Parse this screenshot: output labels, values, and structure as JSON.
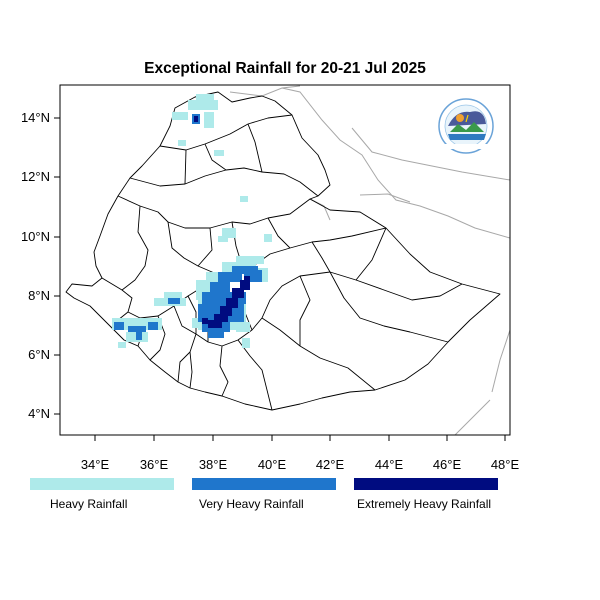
{
  "title": "Exceptional Rainfall for 20-21 Jul 2025",
  "axes": {
    "x_ticks": [
      "34°E",
      "36°E",
      "38°E",
      "40°E",
      "42°E",
      "44°E",
      "46°E",
      "48°E"
    ],
    "y_ticks": [
      "14°N",
      "12°N",
      "10°N",
      "8°N",
      "6°N",
      "4°N"
    ],
    "lon_range": [
      32.8,
      48.2
    ],
    "lat_range": [
      3.1,
      15.1
    ]
  },
  "legend": [
    {
      "label": "Heavy Rainfall",
      "color": "#aeeaea"
    },
    {
      "label": "Very Heavy Rainfall",
      "color": "#1f76cc"
    },
    {
      "label": "Extremely Heavy Rainfall",
      "color": "#000c80"
    }
  ],
  "colors": {
    "heavy": "#aeeaea",
    "very_heavy": "#1f76cc",
    "extremely_heavy": "#000c80",
    "boundary": "#000000",
    "neighbor_boundary": "#a0a0a0"
  },
  "logo": {
    "icon": "meteorology-agency-logo-icon"
  }
}
